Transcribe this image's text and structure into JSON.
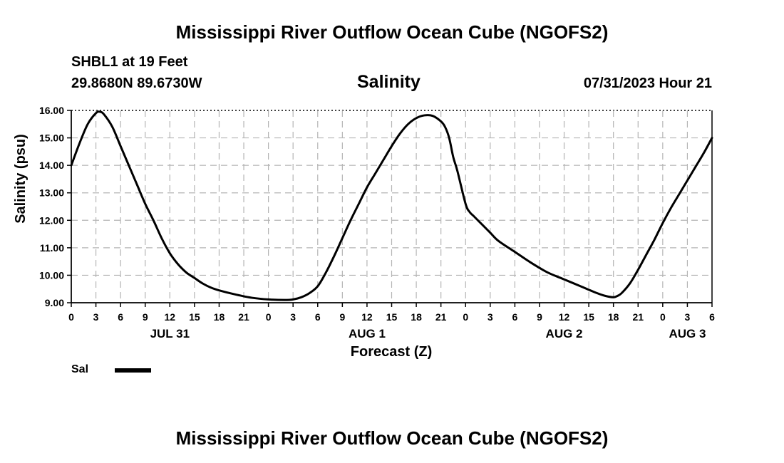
{
  "header": {
    "title": "Mississippi River Outflow Ocean Cube (NGOFS2)",
    "station": "SHBL1 at 19 Feet",
    "coordinates": "29.8680N  89.6730W",
    "parameter": "Salinity",
    "datetime": "07/31/2023 Hour 21"
  },
  "footer": {
    "title": "Mississippi River Outflow Ocean Cube (NGOFS2)"
  },
  "legend": {
    "label": "Sal",
    "color": "#000000"
  },
  "chart_data": {
    "type": "line",
    "title": "Salinity",
    "xlabel": "Forecast (Z)",
    "ylabel": "Salinity (psu)",
    "ylim": [
      9.0,
      16.0
    ],
    "xlim": [
      0,
      78
    ],
    "y_ticks": [
      "9.00",
      "10.00",
      "11.00",
      "12.00",
      "13.00",
      "14.00",
      "15.00",
      "16.00"
    ],
    "x_tick_labels": [
      "0",
      "3",
      "6",
      "9",
      "12",
      "15",
      "18",
      "21",
      "0",
      "3",
      "6",
      "9",
      "12",
      "15",
      "18",
      "21",
      "0",
      "3",
      "6",
      "9",
      "12",
      "15",
      "18",
      "21",
      "0",
      "3",
      "6"
    ],
    "day_labels": [
      {
        "label": "JUL 31",
        "hour": 12
      },
      {
        "label": "AUG 1",
        "hour": 36
      },
      {
        "label": "AUG 2",
        "hour": 60
      },
      {
        "label": "AUG 3",
        "hour": 75
      }
    ],
    "grid": true,
    "series": [
      {
        "name": "Sal",
        "x": [
          0,
          1,
          2,
          3,
          3.5,
          4,
          5,
          6,
          7,
          8,
          9,
          10,
          11,
          12,
          13,
          14,
          15,
          16,
          17,
          18,
          20,
          22,
          24,
          26,
          27,
          28,
          29,
          30,
          31,
          32,
          33,
          34,
          35,
          36,
          37,
          38,
          39,
          40,
          41,
          42,
          43,
          44,
          45,
          45.5,
          46,
          46.5,
          47,
          48,
          48.5,
          49,
          50,
          51,
          52,
          54,
          56,
          58,
          60,
          62,
          64,
          65,
          66,
          66.5,
          67,
          68,
          69,
          70,
          71,
          72,
          73,
          74,
          75,
          76,
          77,
          78
        ],
        "values": [
          14.0,
          14.8,
          15.5,
          15.9,
          15.95,
          15.85,
          15.4,
          14.7,
          14.0,
          13.3,
          12.6,
          12.0,
          11.35,
          10.8,
          10.4,
          10.1,
          9.9,
          9.7,
          9.55,
          9.45,
          9.3,
          9.18,
          9.12,
          9.1,
          9.12,
          9.2,
          9.35,
          9.6,
          10.1,
          10.7,
          11.35,
          12.0,
          12.6,
          13.2,
          13.7,
          14.2,
          14.7,
          15.15,
          15.5,
          15.72,
          15.82,
          15.8,
          15.6,
          15.4,
          15.0,
          14.3,
          13.8,
          12.6,
          12.3,
          12.15,
          11.85,
          11.55,
          11.25,
          10.85,
          10.45,
          10.1,
          9.85,
          9.6,
          9.35,
          9.25,
          9.2,
          9.25,
          9.35,
          9.7,
          10.2,
          10.75,
          11.3,
          11.9,
          12.45,
          12.95,
          13.45,
          13.95,
          14.45,
          15.0
        ]
      }
    ]
  }
}
